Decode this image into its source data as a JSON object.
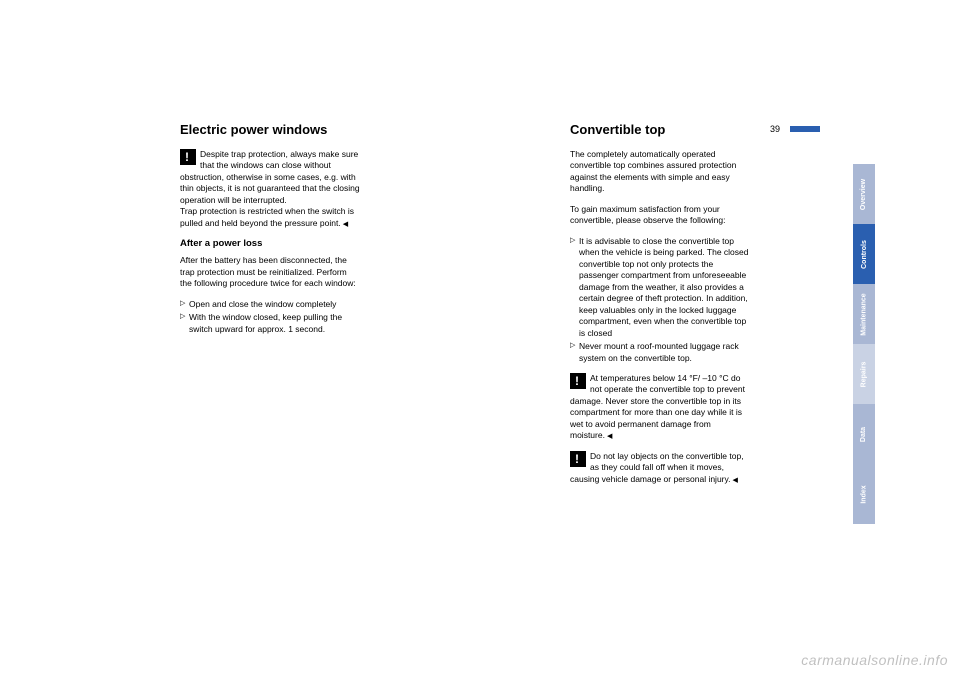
{
  "page_number": "39",
  "left_column": {
    "title": "Electric power windows",
    "warn1": "Despite trap protection, always make sure that the windows can close without obstruction, otherwise in some cases, e.g. with thin objects, it is not guaranteed that the closing operation will be interrupted.\nTrap protection is restricted when the switch is pulled and held beyond the pressure point.",
    "subhead": "After a power loss",
    "para2": "After the battery has been disconnected, the trap protection must be reinitialized. Perform the following procedure twice for each window:",
    "bullets": [
      "Open and close the window completely",
      "With the window closed, keep pulling the switch upward for approx. 1 second."
    ]
  },
  "right_column": {
    "title": "Convertible top",
    "para1": "The completely automatically operated convertible top combines assured protection against the elements with simple and easy handling.",
    "para2": "To gain maximum satisfaction from your convertible, please observe the following:",
    "bullets": [
      "It is advisable to close the convertible top when the vehicle is being parked. The closed convertible top not only protects the passenger compartment from unforeseeable damage from the weather, it also provides a certain degree of theft protection. In addition, keep valuables only in the locked luggage compartment, even when the convertible top is closed",
      "Never mount a roof-mounted luggage rack system on the convertible top."
    ],
    "warn1": "At temperatures below 14 °F/ –10 °C do not operate the convertible top to prevent damage. Never store the convertible top in its compartment for more than one day while it is wet to avoid permanent damage from moisture.",
    "warn2": "Do not lay objects on the convertible top, as they could fall off when it moves, causing vehicle damage or personal injury."
  },
  "tabs": [
    "Overview",
    "Controls",
    "Maintenance",
    "Repairs",
    "Data",
    "Index"
  ],
  "watermark": "carmanualsonline.info"
}
